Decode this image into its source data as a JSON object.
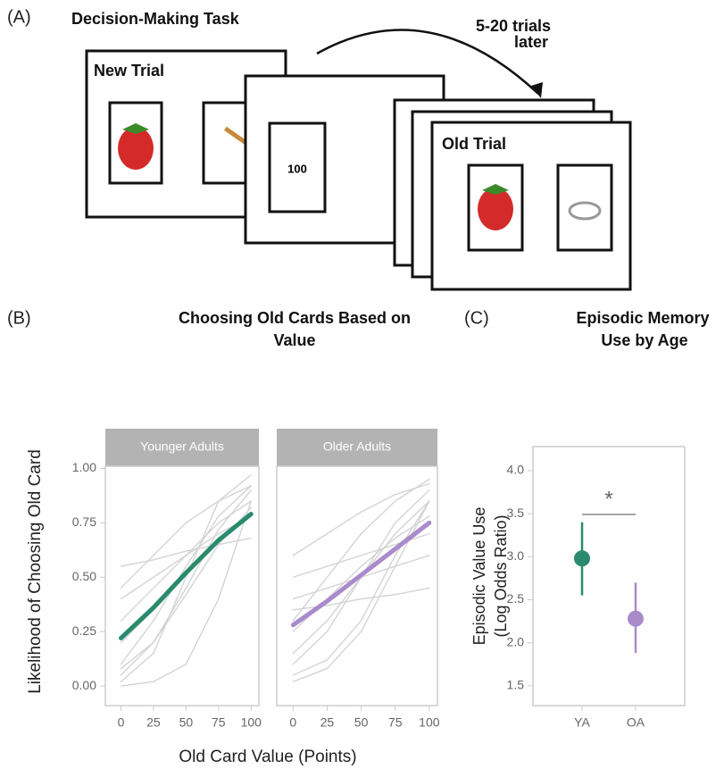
{
  "panel_a": {
    "label": "(A)",
    "title": "Decision-Making Task",
    "new_trial": "New Trial",
    "value_card": 100,
    "arrow_label": [
      "5-20 trials",
      "later"
    ],
    "old_trial": "Old Trial"
  },
  "chart_data": [
    {
      "type": "facet-line",
      "label": "(B)",
      "title": [
        "Choosing Old Cards Based on",
        "Value"
      ],
      "x_label": "Old Card Value (Points)",
      "y_label": "Likelihood of Choosing Old Card",
      "x": [
        0,
        25,
        50,
        75,
        100
      ],
      "xlim": [
        -12,
        106
      ],
      "xticks": [
        0,
        25,
        50,
        75,
        100
      ],
      "ylim": [
        -0.09,
        1.01
      ],
      "yticks": [
        {
          "value": 0,
          "label": "0.00"
        },
        0.25,
        {
          "value": 0.5,
          "label": "0.50"
        },
        0.75,
        {
          "value": 1,
          "label": "1.00"
        }
      ],
      "facets": [
        {
          "name": "Younger Adults",
          "color": "#2a8a6e",
          "values": [
            0.22,
            0.36,
            0.52,
            0.67,
            0.79
          ],
          "individual_color": "#d4d4d4",
          "individuals": [
            [
              0.02,
              0.15,
              0.5,
              0.85,
              0.97
            ],
            [
              0.05,
              0.2,
              0.45,
              0.72,
              0.9
            ],
            [
              0.1,
              0.3,
              0.55,
              0.78,
              0.92
            ],
            [
              0.55,
              0.58,
              0.62,
              0.65,
              0.68
            ],
            [
              0.4,
              0.5,
              0.6,
              0.7,
              0.78
            ],
            [
              0.0,
              0.02,
              0.1,
              0.4,
              0.85
            ],
            [
              0.2,
              0.35,
              0.52,
              0.68,
              0.8
            ],
            [
              0.3,
              0.45,
              0.6,
              0.75,
              0.85
            ],
            [
              0.08,
              0.2,
              0.42,
              0.65,
              0.82
            ],
            [
              0.45,
              0.6,
              0.75,
              0.85,
              0.92
            ]
          ]
        },
        {
          "name": "Older Adults",
          "color": "#a98bcc",
          "values": [
            0.28,
            0.39,
            0.51,
            0.63,
            0.75
          ],
          "individual_color": "#d4d4d4",
          "individuals": [
            [
              0.35,
              0.37,
              0.4,
              0.42,
              0.45
            ],
            [
              0.05,
              0.12,
              0.3,
              0.6,
              0.85
            ],
            [
              0.5,
              0.55,
              0.6,
              0.65,
              0.7
            ],
            [
              0.15,
              0.3,
              0.5,
              0.7,
              0.85
            ],
            [
              0.25,
              0.4,
              0.55,
              0.68,
              0.78
            ],
            [
              0.6,
              0.7,
              0.8,
              0.88,
              0.93
            ],
            [
              0.02,
              0.08,
              0.25,
              0.55,
              0.85
            ],
            [
              0.4,
              0.45,
              0.5,
              0.55,
              0.6
            ],
            [
              0.1,
              0.25,
              0.5,
              0.75,
              0.9
            ],
            [
              0.3,
              0.5,
              0.7,
              0.85,
              0.95
            ]
          ]
        }
      ]
    },
    {
      "type": "pointrange",
      "label": "(C)",
      "title": [
        "Episodic Memory",
        "Use by Age"
      ],
      "y_label": [
        "Episodic Value Use",
        "(Log Odds Ratio)"
      ],
      "categories": [
        "YA",
        "OA"
      ],
      "values": [
        2.98,
        2.28
      ],
      "lower": [
        2.55,
        1.88
      ],
      "upper": [
        3.4,
        2.7
      ],
      "colors": [
        "#2a8a6e",
        "#a98bcc"
      ],
      "annotation": "*",
      "ylim": [
        1.27,
        4.28
      ],
      "yticks": [
        1.5,
        {
          "value": 2,
          "label": "2.0"
        },
        2.5,
        {
          "value": 3,
          "label": "3.0"
        },
        3.5,
        {
          "value": 4,
          "label": "4.0"
        }
      ]
    }
  ]
}
